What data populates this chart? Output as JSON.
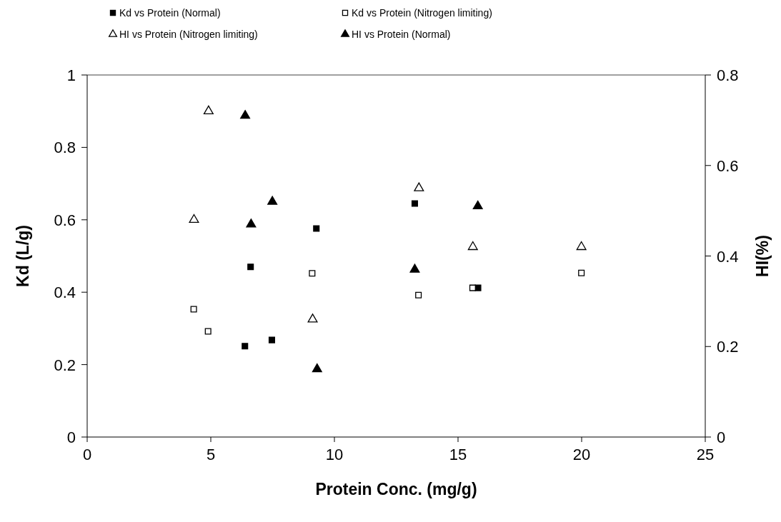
{
  "chart_data": {
    "type": "scatter",
    "xlabel": "Protein Conc. (mg/g)",
    "ylabel": "Kd (L/g)",
    "y2label": "HI(%)",
    "xlim": [
      0,
      25
    ],
    "xticks": [
      0,
      5,
      10,
      15,
      20,
      25
    ],
    "ylim": [
      0,
      1
    ],
    "yticks": [
      0,
      0.2,
      0.4,
      0.6,
      0.8,
      1
    ],
    "y2lim": [
      0,
      0.8
    ],
    "y2ticks": [
      0,
      0.2,
      0.4,
      0.6,
      0.8
    ],
    "grid": false,
    "legend": "top",
    "series": [
      {
        "name": "Kd vs Protein (Normal)",
        "color": "#000000",
        "marker": "square",
        "x": [
          6.38,
          6.61,
          7.47,
          9.27,
          13.25,
          15.81
        ],
        "values": [
          0.251,
          0.47,
          0.268,
          0.576,
          0.645,
          0.412
        ]
      },
      {
        "name": "Kd vs Protein (Nitrogen limiting)",
        "color": "#ffffff",
        "marker": "square",
        "x": [
          4.31,
          4.89,
          9.1,
          13.4,
          15.59,
          19.99
        ],
        "values": [
          0.353,
          0.292,
          0.452,
          0.392,
          0.412,
          0.453
        ]
      },
      {
        "name": "HI vs Protein (Nitrogen limiting)",
        "color": "#ffffff",
        "marker": "triangle",
        "axis": "y2",
        "x": [
          4.32,
          4.91,
          9.12,
          13.42,
          15.6,
          19.99
        ],
        "values": [
          0.48,
          0.72,
          0.26,
          0.55,
          0.42,
          0.42
        ]
      },
      {
        "name": "HI vs Protein (Normal)",
        "color": "#000000",
        "marker": "triangle",
        "axis": "y2",
        "x": [
          6.39,
          6.63,
          7.49,
          9.3,
          13.25,
          15.8
        ],
        "values": [
          0.71,
          0.47,
          0.52,
          0.15,
          0.37,
          0.51
        ]
      }
    ]
  }
}
